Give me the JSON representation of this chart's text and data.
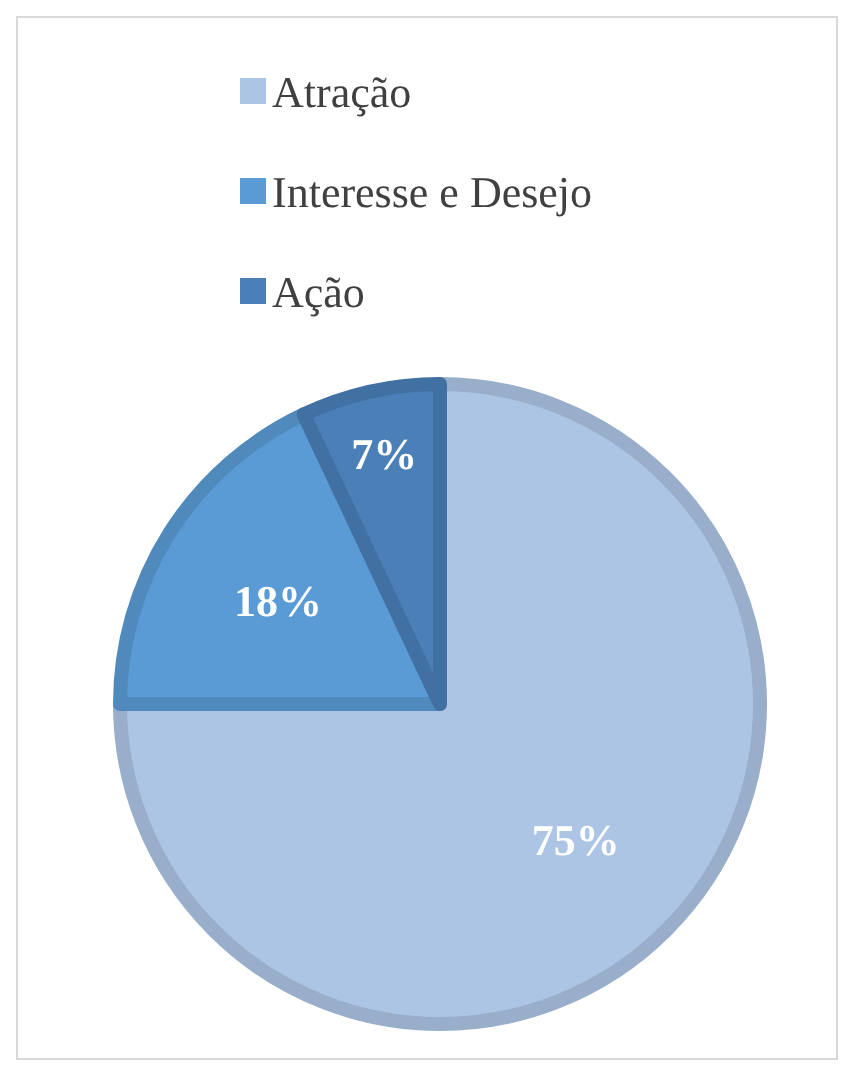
{
  "chart_data": {
    "type": "pie",
    "categories": [
      "Atração",
      "Interesse e Desejo",
      "Ação"
    ],
    "values": [
      75,
      18,
      7
    ],
    "value_labels": [
      "75%",
      "18%",
      "7%"
    ],
    "colors": [
      "#adc5e5",
      "#5b9bd5",
      "#4a7fb8"
    ],
    "legend": "top"
  }
}
